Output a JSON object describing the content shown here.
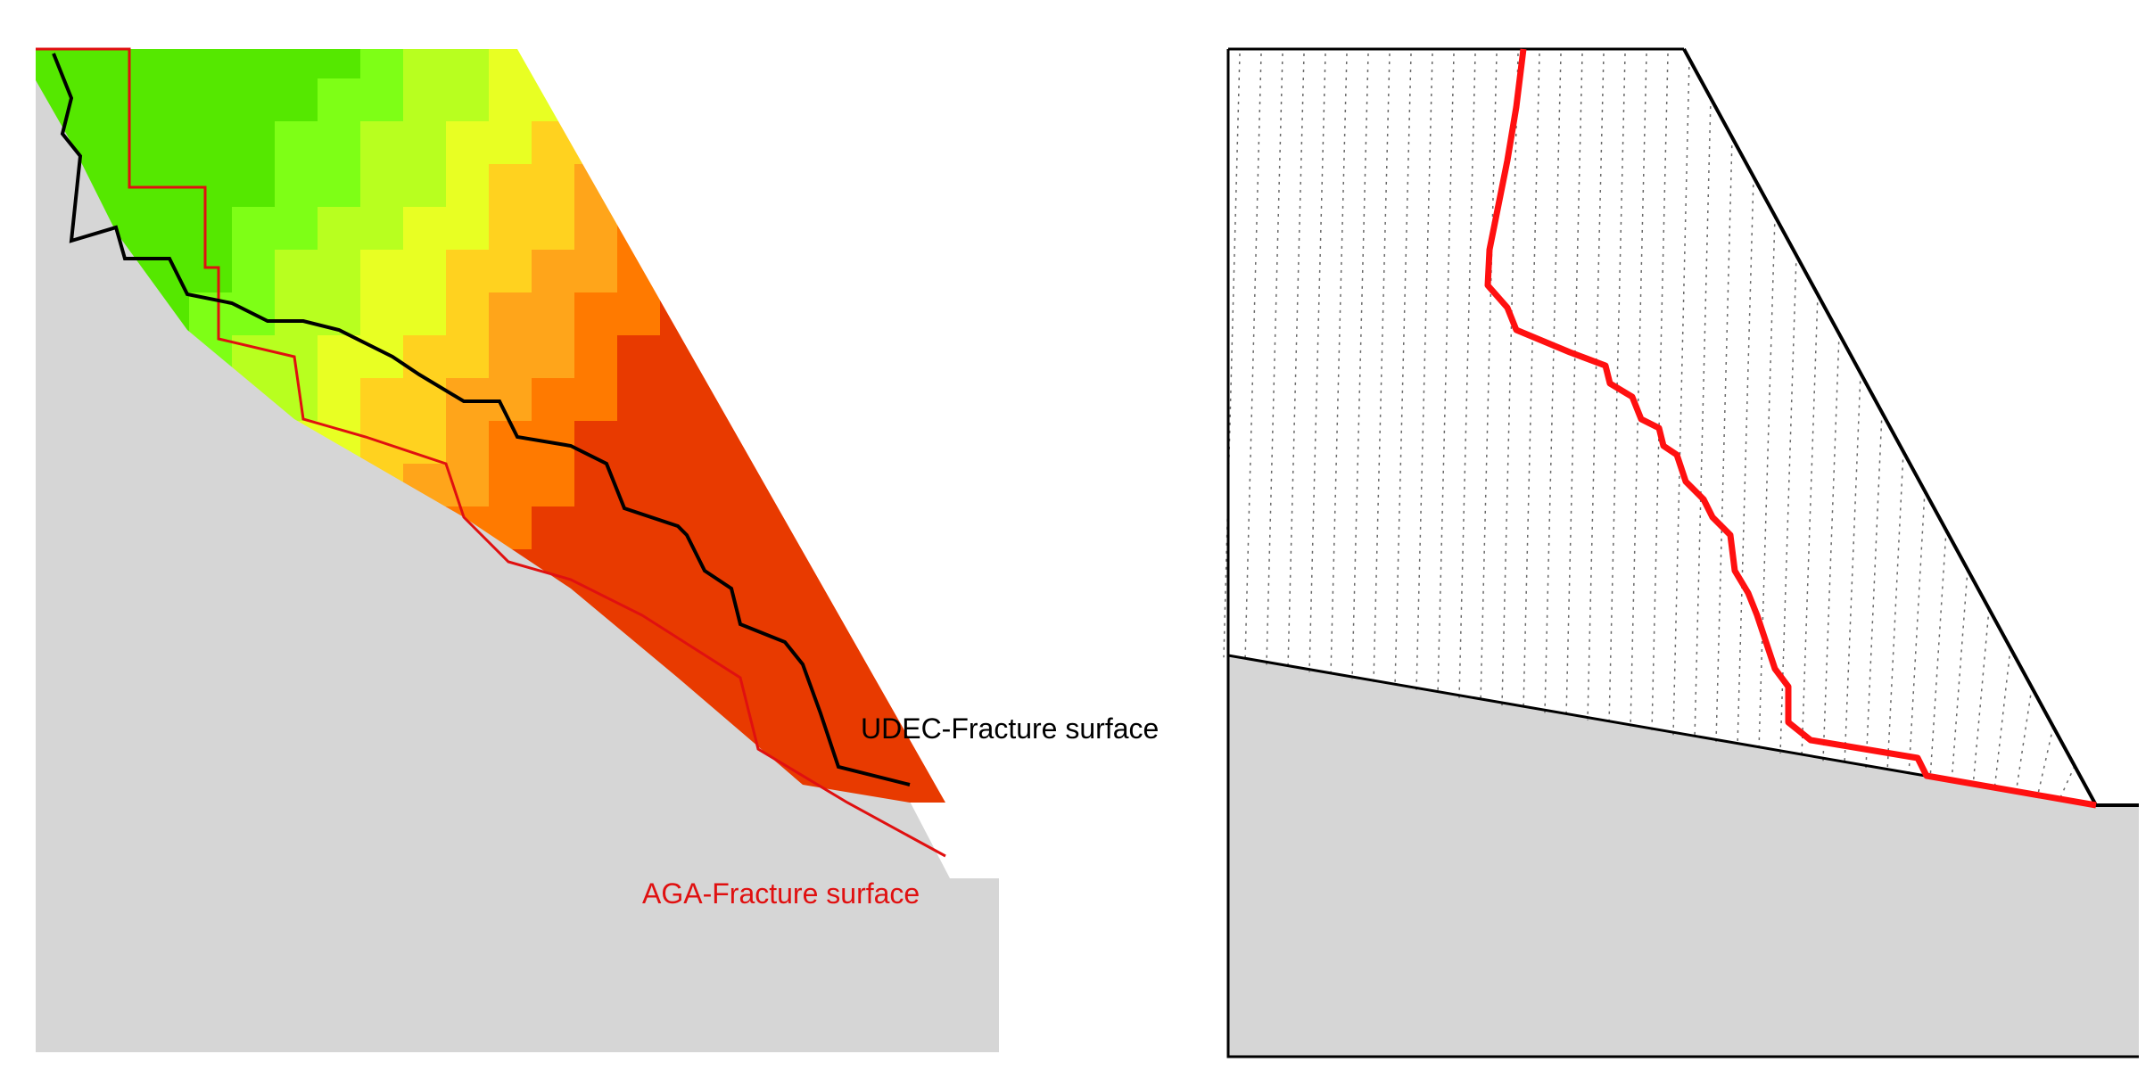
{
  "left_panel": {
    "udec_label": "UDEC-Fracture surface",
    "aga_label": "AGA-Fracture surface",
    "colors": {
      "ground": "#d6d6d6",
      "udec_line": "#000000",
      "aga_line": "#e01010",
      "gradient": [
        "#e83a00",
        "#ff7a00",
        "#ffa51a",
        "#ffd21f",
        "#e8ff23",
        "#b8ff1f",
        "#7eff16",
        "#55e800"
      ]
    }
  },
  "right_panel": {
    "colors": {
      "ground": "#d6d6d6",
      "outline": "#000000",
      "fracture_line": "#ff1010",
      "joint_dots": "#6a6a6a"
    }
  }
}
